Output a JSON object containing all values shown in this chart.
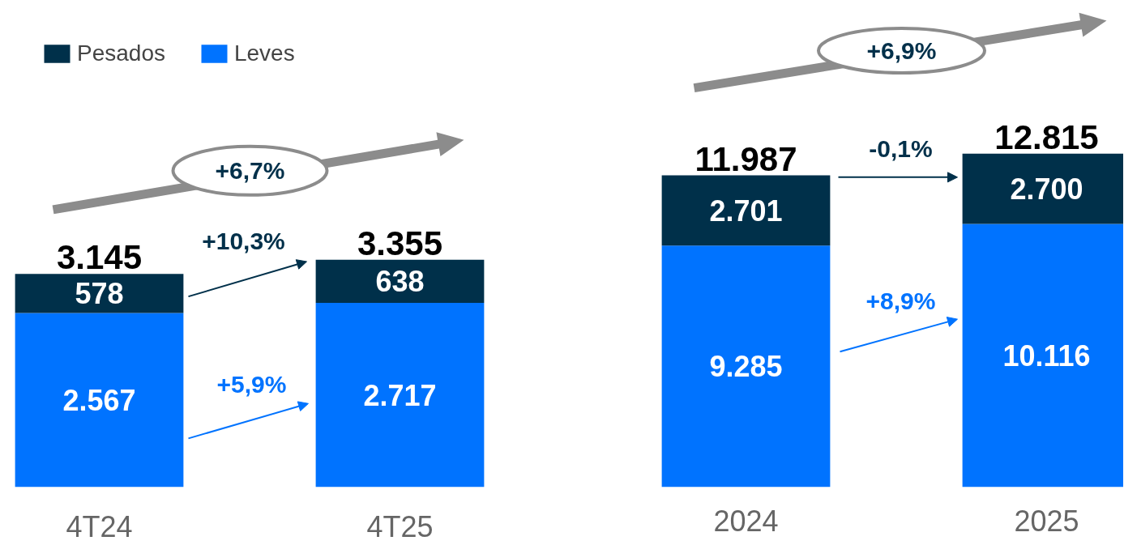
{
  "chart_data": [
    {
      "type": "bar",
      "stacked": true,
      "categories": [
        "4T24",
        "4T25"
      ],
      "legend": "top left",
      "series": [
        {
          "name": "Leves",
          "color": "#0073ff",
          "values": [
            2567,
            2717
          ],
          "value_labels": [
            "2.567",
            "2.717"
          ]
        },
        {
          "name": "Pesados",
          "color": "#00304a",
          "values": [
            578,
            638
          ],
          "value_labels": [
            "578",
            "638"
          ]
        }
      ],
      "totals": [
        "3.145",
        "3.355"
      ],
      "annotations": [
        "+6,7%",
        "+10,3%",
        "+5,9%"
      ]
    },
    {
      "type": "bar",
      "stacked": true,
      "categories": [
        "2024",
        "2025"
      ],
      "series": [
        {
          "color": "#0073ff",
          "values": [
            9285,
            10116
          ],
          "value_labels": [
            "9.285",
            "10.116"
          ]
        },
        {
          "color": "#00304a",
          "values": [
            2701,
            2700
          ],
          "value_labels": [
            "2.701",
            "2.700"
          ]
        }
      ],
      "totals": [
        "11.987",
        "12.815"
      ],
      "annotations": [
        "+6,9%",
        "-0,1%",
        "+8,9%"
      ]
    }
  ]
}
